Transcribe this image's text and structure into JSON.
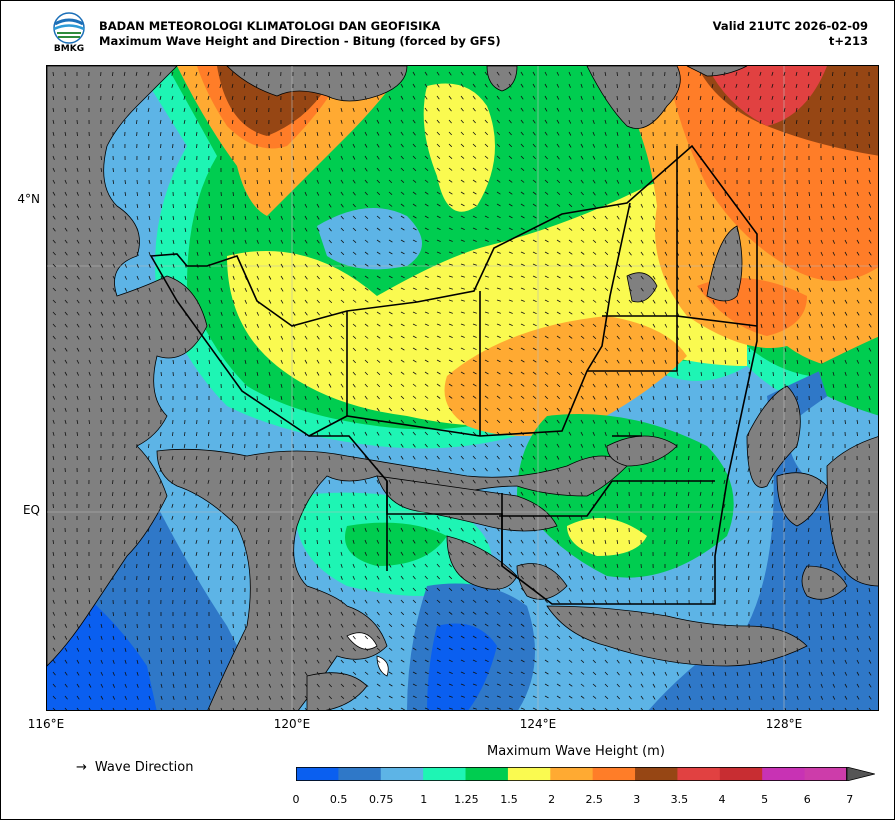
{
  "header": {
    "agency": "BADAN METEOROLOGI KLIMATOLOGI DAN GEOFISIKA",
    "product": "Maximum Wave Height and Direction - Bitung (forced by GFS)",
    "valid": "Valid 21UTC 2026-02-09",
    "lead": "t+213",
    "logo_text": "BMKG"
  },
  "map": {
    "lat_labels": [
      "4°N",
      "EQ"
    ],
    "lon_labels": [
      "116°E",
      "120°E",
      "124°E",
      "128°E"
    ],
    "arrow_glyph": "→",
    "direction_label": "Wave Direction"
  },
  "colorbar": {
    "title": "Maximum Wave Height (m)",
    "ticks": [
      "0",
      "0.5",
      "0.75",
      "1",
      "1.25",
      "1.5",
      "2",
      "2.5",
      "3",
      "3.5",
      "4",
      "5",
      "6",
      "7"
    ],
    "colors": [
      "#0a5ff0",
      "#2f78c8",
      "#5db4e6",
      "#1ef5b4",
      "#00cd50",
      "#fafa50",
      "#ffaa32",
      "#ff7d28",
      "#964614",
      "#e14141",
      "#c82d32",
      "#c832b4",
      "#cd3caa"
    ],
    "extend_color": "#555555"
  }
}
